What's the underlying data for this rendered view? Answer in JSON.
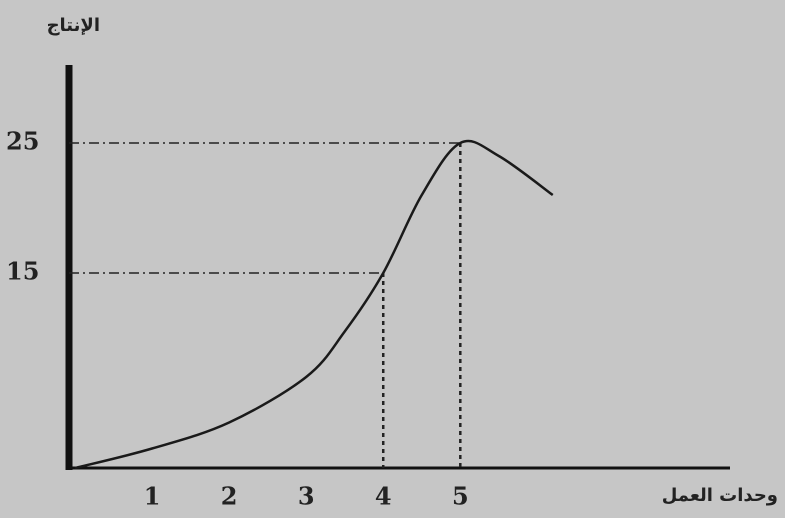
{
  "chart_data": {
    "type": "line",
    "y_label": "الإنتاج",
    "x_label": "وحدات العمل",
    "series": [
      {
        "color": "#1a1a1a",
        "x": [
          0,
          1,
          2,
          3,
          3.5,
          4,
          4.5,
          5,
          5.5,
          6.2
        ],
        "values": [
          0,
          1.5,
          3.5,
          7,
          10.5,
          15,
          21,
          25,
          24,
          21
        ]
      }
    ],
    "xlim": [
      0,
      8.5
    ],
    "ylim": [
      0,
      31
    ],
    "xticks": [
      1,
      2,
      3,
      4,
      5
    ],
    "yticks": [
      15,
      25
    ],
    "grid": false
  }
}
